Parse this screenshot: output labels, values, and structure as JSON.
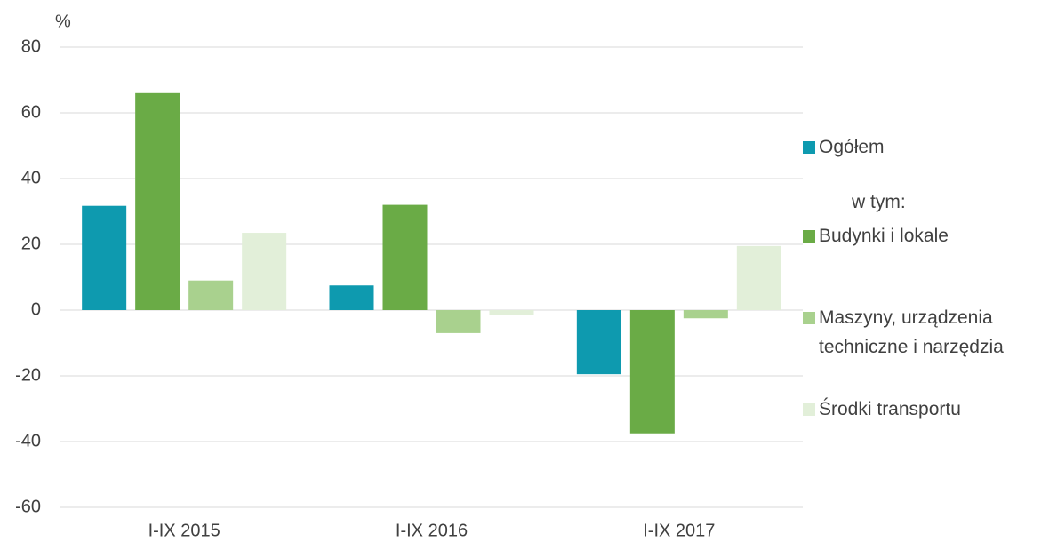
{
  "chart_data": {
    "type": "bar",
    "y_label": "%",
    "categories": [
      "I-IX 2015",
      "I-IX 2016",
      "I-IX 2017"
    ],
    "series": [
      {
        "name": "Ogółem",
        "color": "#0e9aaf",
        "values": [
          31.7,
          7.5,
          -19.5
        ]
      },
      {
        "name": "Budynki i lokale",
        "color": "#6aab46",
        "values": [
          66,
          32,
          -37.5
        ]
      },
      {
        "name": "Maszyny, urządzenia techniczne i narzędzia",
        "color": "#a9d18e",
        "values": [
          9,
          -7,
          -2.5
        ]
      },
      {
        "name": "Środki transportu",
        "color": "#e2efd9",
        "values": [
          23.5,
          -1.5,
          19.5
        ]
      }
    ],
    "legend_note": "w tym:",
    "ylim": [
      -60,
      80
    ],
    "yticks": [
      -60,
      -40,
      -20,
      0,
      20,
      40,
      60,
      80
    ],
    "grid": true,
    "legend": "right"
  }
}
